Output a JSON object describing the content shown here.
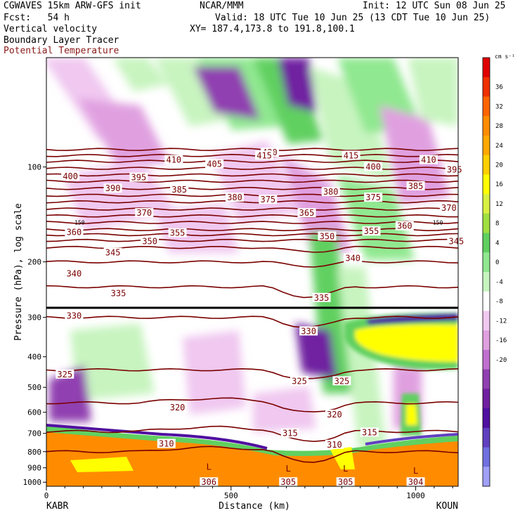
{
  "header": {
    "model": "CGWAVES 15km ARW-GFS init",
    "center": "NCAR/MMM",
    "init": "Init: 12 UTC Sun 08 Jun 25",
    "fcst": "Fcst:   54 h",
    "valid": "Valid: 18 UTC Tue 10 Jun 25 (13 CDT Tue 10 Jun 25)",
    "xy": "XY= 187.4,173.8 to 191.8,100.1",
    "fields": [
      "Vertical velocity",
      "Boundary Layer Tracer",
      "Potential Temperature"
    ]
  },
  "colors": {
    "theta": "#7a0000",
    "frame": "#000000"
  },
  "chart_data": {
    "type": "heatmap",
    "title": "Vertical velocity",
    "xlabel": "Distance (km)",
    "ylabel": "Pressure (hPa), log scale",
    "x_ticks": [
      "0",
      "500",
      "1000"
    ],
    "x_endpoints": [
      "KABR",
      "KOUN"
    ],
    "y_ticks": [
      "100",
      "200",
      "300",
      "400",
      "500",
      "600",
      "700",
      "800",
      "900",
      "1000"
    ],
    "colorbar": {
      "unit": "cm s⁻¹",
      "tick_labels": [
        "36",
        "32",
        "28",
        "24",
        "20",
        "16",
        "12",
        "8",
        "4",
        "0",
        "-4",
        "-8",
        "-12",
        "-16",
        "-20"
      ],
      "colors": [
        "#e00000",
        "#f03000",
        "#ff6400",
        "#ff8c00",
        "#ffa800",
        "#ffd000",
        "#ffff00",
        "#d8f040",
        "#a0e040",
        "#60d060",
        "#90e890",
        "#c8f4c0",
        "#ffffff",
        "#f0c8f0",
        "#e0a0e0",
        "#c070d0",
        "#9040b0",
        "#7020a0",
        "#5010a0",
        "#6040c0",
        "#7070e0",
        "#a0a0f8"
      ]
    },
    "theta_labels": [
      {
        "text": "420",
        "x": 605,
        "p": 90
      },
      {
        "text": "415",
        "x": 590,
        "p": 92
      },
      {
        "text": "415",
        "x": 825,
        "p": 92
      },
      {
        "text": "410",
        "x": 345,
        "p": 95
      },
      {
        "text": "410",
        "x": 1035,
        "p": 95
      },
      {
        "text": "405",
        "x": 455,
        "p": 98
      },
      {
        "text": "400",
        "x": 65,
        "p": 107
      },
      {
        "text": "400",
        "x": 885,
        "p": 100
      },
      {
        "text": "395",
        "x": 250,
        "p": 108
      },
      {
        "text": "395",
        "x": 1105,
        "p": 102
      },
      {
        "text": "390",
        "x": 180,
        "p": 117
      },
      {
        "text": "385",
        "x": 360,
        "p": 118
      },
      {
        "text": "385",
        "x": 1000,
        "p": 115
      },
      {
        "text": "380",
        "x": 510,
        "p": 125
      },
      {
        "text": "380",
        "x": 770,
        "p": 120
      },
      {
        "text": "375",
        "x": 600,
        "p": 127
      },
      {
        "text": "375",
        "x": 885,
        "p": 125
      },
      {
        "text": "370",
        "x": 265,
        "p": 140
      },
      {
        "text": "370",
        "x": 1090,
        "p": 135
      },
      {
        "text": "365",
        "x": 705,
        "p": 140
      },
      {
        "text": "360",
        "x": 75,
        "p": 161
      },
      {
        "text": "360",
        "x": 970,
        "p": 154
      },
      {
        "text": "355",
        "x": 355,
        "p": 162
      },
      {
        "text": "355",
        "x": 880,
        "p": 160
      },
      {
        "text": "350",
        "x": 280,
        "p": 172
      },
      {
        "text": "350",
        "x": 760,
        "p": 166
      },
      {
        "text": "345",
        "x": 180,
        "p": 187
      },
      {
        "text": "345",
        "x": 1110,
        "p": 172
      },
      {
        "text": "340",
        "x": 75,
        "p": 218
      },
      {
        "text": "340",
        "x": 830,
        "p": 195
      },
      {
        "text": "335",
        "x": 195,
        "p": 252
      },
      {
        "text": "335",
        "x": 745,
        "p": 260
      },
      {
        "text": "330",
        "x": 75,
        "p": 297
      },
      {
        "text": "330",
        "x": 710,
        "p": 332
      },
      {
        "text": "325",
        "x": 50,
        "p": 455
      },
      {
        "text": "325",
        "x": 685,
        "p": 478
      },
      {
        "text": "325",
        "x": 800,
        "p": 478
      },
      {
        "text": "320",
        "x": 355,
        "p": 580
      },
      {
        "text": "320",
        "x": 780,
        "p": 610
      },
      {
        "text": "315",
        "x": 660,
        "p": 700
      },
      {
        "text": "315",
        "x": 875,
        "p": 695
      },
      {
        "text": "310",
        "x": 325,
        "p": 755
      },
      {
        "text": "310",
        "x": 780,
        "p": 760
      },
      {
        "text": "306",
        "x": 440,
        "p": 1000
      },
      {
        "text": "305",
        "x": 655,
        "p": 1000
      },
      {
        "text": "305",
        "x": 810,
        "p": 1000
      },
      {
        "text": "304",
        "x": 1000,
        "p": 1000
      }
    ],
    "low_markers": [
      {
        "text": "L",
        "x": 440,
        "p": 895
      },
      {
        "text": "L",
        "x": 655,
        "p": 905
      },
      {
        "text": "L",
        "x": 810,
        "p": 905
      },
      {
        "text": "L",
        "x": 1000,
        "p": 920
      }
    ],
    "tropopause_markers": [
      {
        "text": "150",
        "x": 90,
        "p": 150
      },
      {
        "text": "150",
        "x": 1060,
        "p": 150
      }
    ],
    "theta_levels": [
      420,
      415,
      410,
      405,
      400,
      395,
      390,
      385,
      380,
      375,
      370,
      365,
      360,
      355,
      350,
      345,
      340,
      335,
      330,
      325,
      320,
      315,
      310
    ]
  }
}
